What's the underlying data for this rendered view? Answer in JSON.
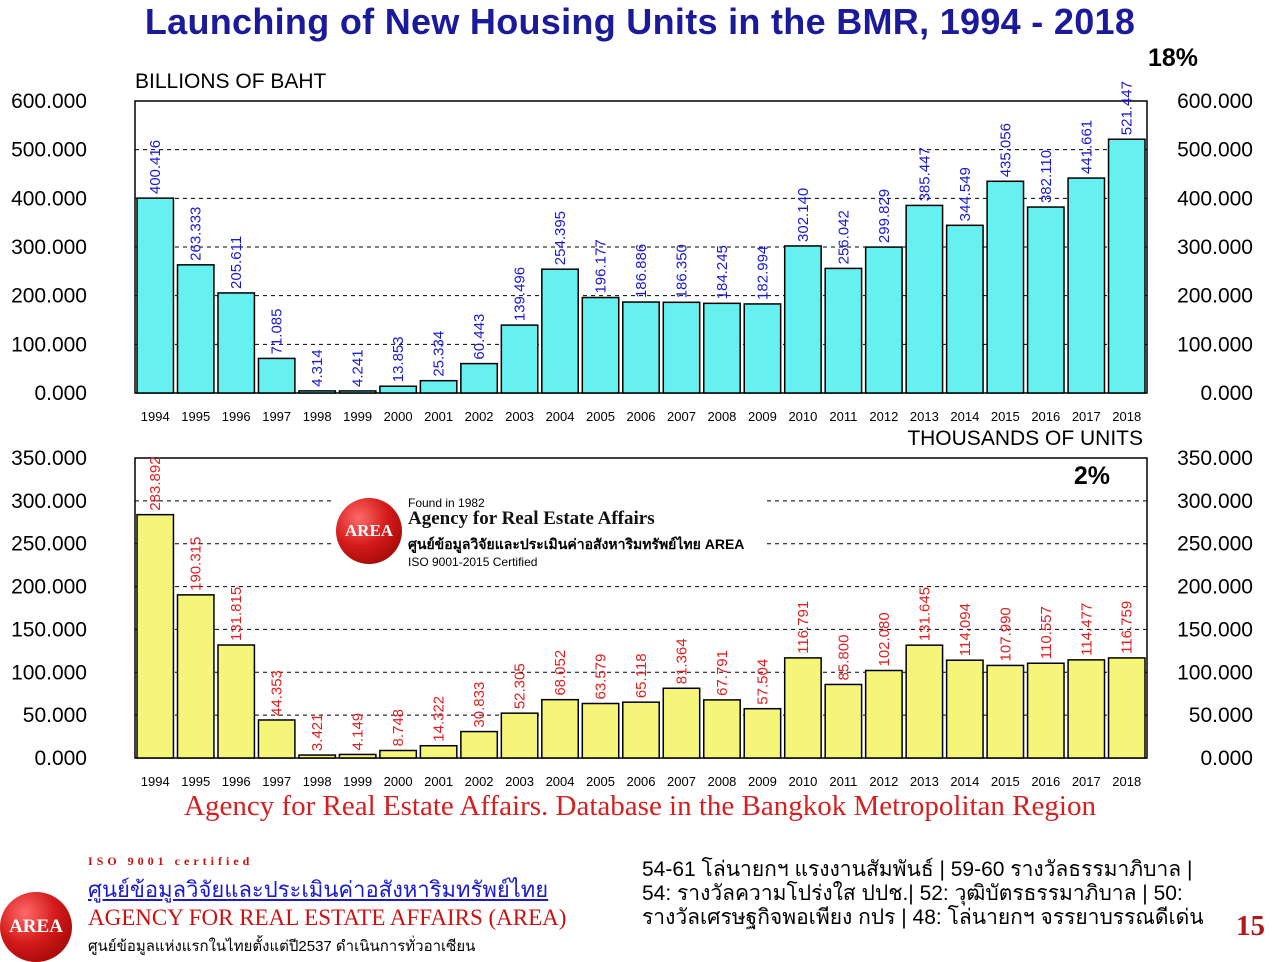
{
  "title": "Launching of New Housing Units in the BMR, 1994 - 2018",
  "chart_data": [
    {
      "type": "bar",
      "title": "",
      "ylabel": "BILLIONS OF BAHT",
      "annotation": "18%",
      "ylim": [
        0,
        600
      ],
      "yticks": [
        "0.000",
        "100.000",
        "200.000",
        "300.000",
        "400.000",
        "500.000",
        "600.000"
      ],
      "categories": [
        "1994",
        "1995",
        "1996",
        "1997",
        "1998",
        "1999",
        "2000",
        "2001",
        "2002",
        "2003",
        "2004",
        "2005",
        "2006",
        "2007",
        "2008",
        "2009",
        "2010",
        "2011",
        "2012",
        "2013",
        "2014",
        "2015",
        "2016",
        "2017",
        "2018"
      ],
      "values": [
        400.416,
        263.333,
        205.611,
        71.085,
        4.314,
        4.241,
        13.853,
        25.334,
        60.443,
        139.496,
        254.395,
        196.177,
        186.886,
        186.35,
        184.245,
        182.994,
        302.14,
        256.042,
        299.829,
        385.447,
        344.549,
        435.056,
        382.11,
        441.661,
        521.447
      ],
      "labels": [
        "400.416",
        "263.333",
        "205.611",
        "71.085",
        "4.314",
        "4.241",
        "13.853",
        "25.334",
        "60.443",
        "139.496",
        "254.395",
        "196.177",
        "186.886",
        "186.350",
        "184.245",
        "182.994",
        "302.140",
        "256.042",
        "299.829",
        "385.447",
        "344.549",
        "435.056",
        "382.110",
        "441.661",
        "521.447"
      ],
      "bar_color": "#66f0f0",
      "label_color": "#1a1ad0",
      "grid": true,
      "legend": "none"
    },
    {
      "type": "bar",
      "title": "",
      "ylabel": "THOUSANDS OF UNITS",
      "annotation": "2%",
      "ylim": [
        0,
        350
      ],
      "yticks": [
        "0.000",
        "50.000",
        "100.000",
        "150.000",
        "200.000",
        "250.000",
        "300.000",
        "350.000"
      ],
      "categories": [
        "1994",
        "1995",
        "1996",
        "1997",
        "1998",
        "1999",
        "2000",
        "2001",
        "2002",
        "2003",
        "2004",
        "2005",
        "2006",
        "2007",
        "2008",
        "2009",
        "2010",
        "2011",
        "2012",
        "2013",
        "2014",
        "2015",
        "2016",
        "2017",
        "2018"
      ],
      "values": [
        283.892,
        190.315,
        131.815,
        44.353,
        3.421,
        4.149,
        8.748,
        14.322,
        30.833,
        52.305,
        68.052,
        63.579,
        65.118,
        81.364,
        67.791,
        57.504,
        116.791,
        85.8,
        102.08,
        131.645,
        114.094,
        107.99,
        110.557,
        114.477,
        116.759
      ],
      "labels": [
        "283.892",
        "190.315",
        "131.815",
        "44.353",
        "3.421",
        "4.149",
        "8.748",
        "14.322",
        "30.833",
        "52.305",
        "68.052",
        "63.579",
        "65.118",
        "81.364",
        "67.791",
        "57.504",
        "116.791",
        "85.800",
        "102.080",
        "131.645",
        "114.094",
        "107.990",
        "110.557",
        "114.477",
        "116.759"
      ],
      "bar_color": "#f5f57a",
      "label_color": "#e02020",
      "grid": true,
      "legend": "none"
    }
  ],
  "watermark": {
    "logo_text": "AREA",
    "found": "Found in 1982",
    "name": "Agency for Real Estate Affairs",
    "thai": "ศูนย์ข้อมูลวิจัยและประเมินค่าอสังหาริมทรัพย์ไทย AREA",
    "iso": "ISO 9001-2015 Certified"
  },
  "source": "Agency for Real Estate Affairs. Database in the Bangkok Metropolitan Region",
  "footer": {
    "logo_text": "AREA",
    "iso": "ISO 9001 certified",
    "thai_name": "ศูนย์ข้อมูลวิจัยและประเมินค่าอสังหาริมทรัพย์ไทย",
    "en_name": "AGENCY FOR REAL ESTATE AFFAIRS (AREA)",
    "sub": "ศูนย์ข้อมูลแห่งแรกในไทยตั้งแต่ปี2537 ดำเนินการทั่วอาเซียน",
    "awards": "54-61 โล่นายกฯ แรงงานสัมพันธ์ | 59-60 รางวัลธรรมาภิบาล | 54: รางวัลความโปร่งใส ปปช.| 52: วุฒิบัตรธรรมาภิบาล | 50: รางวัลเศรษฐกิจพอเพียง กปร | 48: โล่นายกฯ จรรยาบรรณดีเด่น",
    "page": "15"
  }
}
